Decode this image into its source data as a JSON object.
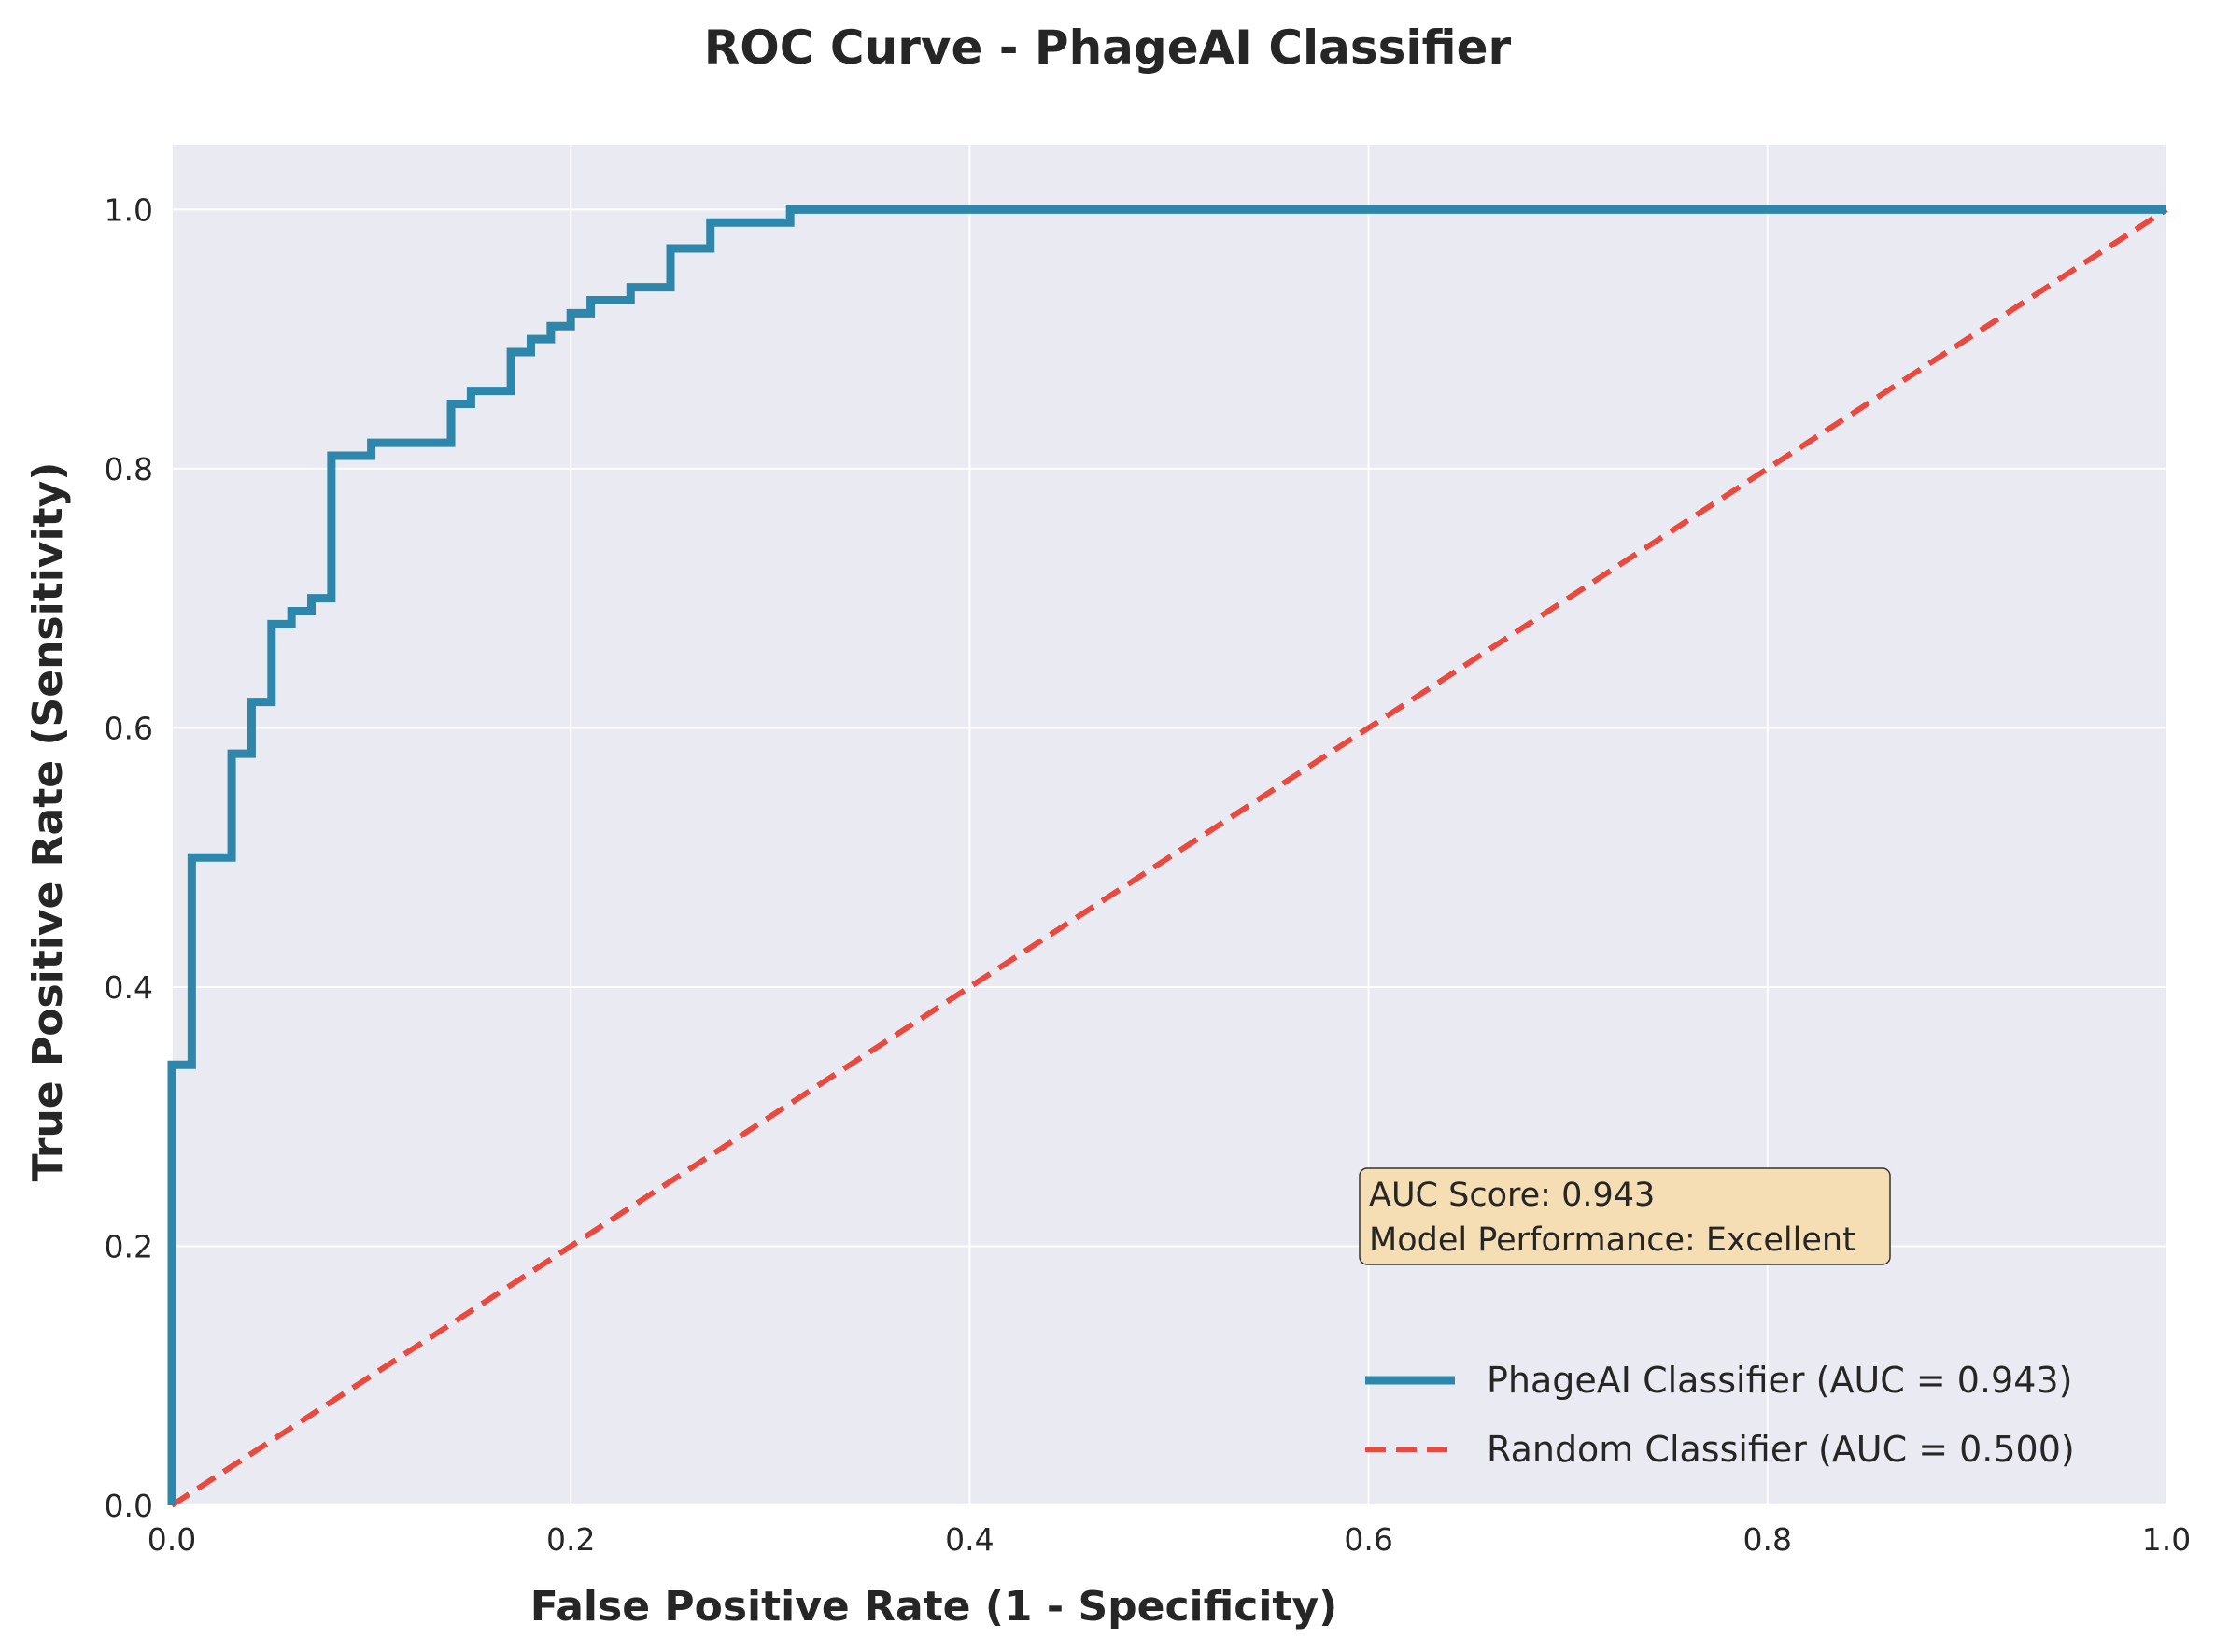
{
  "chart_data": {
    "type": "line",
    "title": "ROC Curve - PhageAI Classifier",
    "xlabel": "False Positive Rate (1 - Specificity)",
    "ylabel": "True Positive Rate (Sensitivity)",
    "xlim": [
      0,
      1
    ],
    "ylim": [
      0,
      1.05
    ],
    "xticks": [
      0.0,
      0.2,
      0.4,
      0.6,
      0.8,
      1.0
    ],
    "yticks": [
      0.0,
      0.2,
      0.4,
      0.6,
      0.8,
      1.0
    ],
    "xtick_labels": [
      "0.0",
      "0.2",
      "0.4",
      "0.6",
      "0.8",
      "1.0"
    ],
    "ytick_labels": [
      "0.0",
      "0.2",
      "0.4",
      "0.6",
      "0.8",
      "1.0"
    ],
    "grid": true,
    "legend_position": "lower-right",
    "series": [
      {
        "name": "PhageAI Classifier (AUC = 0.943)",
        "color": "#2e86ab",
        "style": "solid",
        "x": [
          0.0,
          0.0,
          0.01,
          0.01,
          0.03,
          0.03,
          0.04,
          0.04,
          0.05,
          0.05,
          0.06,
          0.06,
          0.07,
          0.07,
          0.08,
          0.08,
          0.1,
          0.1,
          0.14,
          0.14,
          0.15,
          0.15,
          0.17,
          0.17,
          0.18,
          0.18,
          0.19,
          0.19,
          0.2,
          0.2,
          0.21,
          0.21,
          0.23,
          0.23,
          0.25,
          0.25,
          0.27,
          0.27,
          0.31,
          0.31,
          1.0
        ],
        "y": [
          0.0,
          0.34,
          0.34,
          0.5,
          0.5,
          0.58,
          0.58,
          0.62,
          0.62,
          0.68,
          0.68,
          0.69,
          0.69,
          0.7,
          0.7,
          0.81,
          0.81,
          0.82,
          0.82,
          0.85,
          0.85,
          0.86,
          0.86,
          0.89,
          0.89,
          0.9,
          0.9,
          0.91,
          0.91,
          0.92,
          0.92,
          0.93,
          0.93,
          0.94,
          0.94,
          0.97,
          0.97,
          0.99,
          0.99,
          1.0,
          1.0
        ]
      },
      {
        "name": "Random Classifier (AUC = 0.500)",
        "color": "#e84a3f",
        "style": "dashed",
        "x": [
          0.0,
          1.0
        ],
        "y": [
          0.0,
          1.0
        ]
      }
    ],
    "annotation": {
      "lines": [
        "AUC Score: 0.943",
        "Model Performance: Excellent"
      ],
      "background": "#f5deb3"
    },
    "background_color": "#eaeaf2",
    "grid_color": "#ffffff"
  }
}
